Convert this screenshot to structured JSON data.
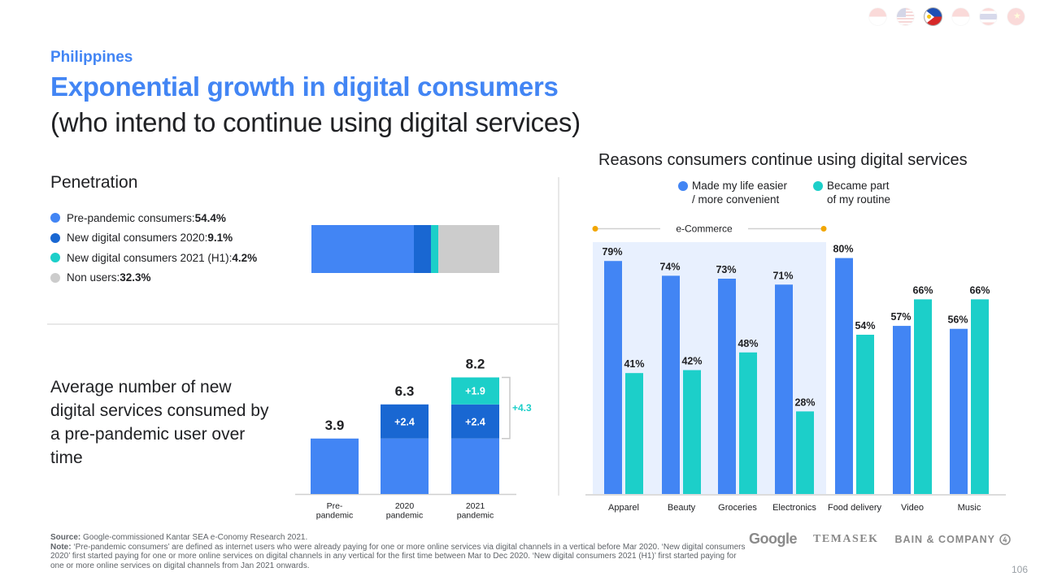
{
  "header": {
    "country": "Philippines",
    "title_line1": "Exponential growth in digital consumers",
    "title_line2": "(who intend to continue using digital services)"
  },
  "flags": [
    {
      "name": "indonesia-flag",
      "active": false
    },
    {
      "name": "malaysia-flag",
      "active": false
    },
    {
      "name": "philippines-flag",
      "active": true
    },
    {
      "name": "singapore-flag",
      "active": false
    },
    {
      "name": "thailand-flag",
      "active": false
    },
    {
      "name": "vietnam-flag",
      "active": false
    }
  ],
  "colors": {
    "blue": "#4285f4",
    "dark_blue": "#1967d2",
    "teal": "#1ccfc9",
    "grey": "#cccccc",
    "ecommerce_bg": "#e8f0fe",
    "bracket": "#f2a600"
  },
  "penetration": {
    "title": "Penetration",
    "legend": [
      {
        "label": "Pre-pandemic consumers: ",
        "value": "54.4%",
        "color": "#4285f4"
      },
      {
        "label": "New digital consumers 2020: ",
        "value": "9.1%",
        "color": "#1967d2"
      },
      {
        "label": "New digital consumers 2021 (H1): ",
        "value": "4.2%",
        "color": "#1ccfc9"
      },
      {
        "label": "Non users: ",
        "value": "32.3%",
        "color": "#cccccc"
      }
    ]
  },
  "average": {
    "title": "Average number of new digital services consumed by a pre-pandemic user over time"
  },
  "reasons": {
    "title": "Reasons consumers continue using digital services",
    "legend": [
      {
        "label_line1": "Made my life easier",
        "label_line2": "/ more convenient",
        "color": "#4285f4"
      },
      {
        "label_line1": "Became part",
        "label_line2": "of my routine",
        "color": "#1ccfc9"
      }
    ],
    "group_label": "e-Commerce"
  },
  "footer": {
    "source_label": "Source:",
    "source_text": " Google-commissioned Kantar SEA e-Conomy Research 2021.",
    "note_label": "Note:",
    "note_text": " ‘Pre-pandemic consumers’ are defined as internet users who were already paying for one or more online services via digital channels in a vertical before Mar 2020. ‘New digital consumers 2020’ first started paying for one or more online services on digital channels in any vertical for the first time between Mar to Dec 2020. ‘New digital consumers 2021 (H1)’ first started paying for one or more online services on digital channels from Jan 2021 onwards.",
    "logos": {
      "google": "Google",
      "temasek": "TEMASEK",
      "bain": "BAIN & COMPANY"
    },
    "page_number": "106"
  },
  "chart_data": [
    {
      "type": "bar",
      "orientation": "horizontal-stacked",
      "title": "Penetration",
      "categories": [
        "Penetration"
      ],
      "series": [
        {
          "name": "Pre-pandemic consumers",
          "values": [
            54.4
          ]
        },
        {
          "name": "New digital consumers 2020",
          "values": [
            9.1
          ]
        },
        {
          "name": "New digital consumers 2021 (H1)",
          "values": [
            4.2
          ]
        },
        {
          "name": "Non users",
          "values": [
            32.3
          ]
        }
      ],
      "unit": "%"
    },
    {
      "type": "bar",
      "orientation": "vertical-stacked",
      "title": "Average number of new digital services consumed by a pre-pandemic user over time",
      "categories": [
        "Pre-\npandemic",
        "2020\npandemic",
        "2021\npandemic"
      ],
      "series": [
        {
          "name": "Pre-pandemic base",
          "values": [
            3.9,
            3.9,
            3.9
          ]
        },
        {
          "name": "2020 increment",
          "values": [
            0,
            2.4,
            2.4
          ],
          "labels": [
            "",
            "+2.4",
            "+2.4"
          ]
        },
        {
          "name": "2021 increment",
          "values": [
            0,
            0,
            1.9
          ],
          "labels": [
            "",
            "",
            "+1.9"
          ]
        }
      ],
      "totals": [
        "3.9",
        "6.3",
        "8.2"
      ],
      "annotation": "+4.3",
      "ylim": [
        0,
        9
      ]
    },
    {
      "type": "bar",
      "orientation": "vertical-grouped",
      "title": "Reasons consumers continue using digital services",
      "categories": [
        "Apparel",
        "Beauty",
        "Groceries",
        "Electronics",
        "Food delivery",
        "Video",
        "Music"
      ],
      "series": [
        {
          "name": "Made my life easier / more convenient",
          "values": [
            79,
            74,
            73,
            71,
            80,
            57,
            56
          ]
        },
        {
          "name": "Became part of my routine",
          "values": [
            41,
            42,
            48,
            28,
            54,
            66,
            66
          ]
        }
      ],
      "group_annotation": {
        "label": "e-Commerce",
        "categories": [
          "Apparel",
          "Beauty",
          "Groceries",
          "Electronics"
        ]
      },
      "unit": "%",
      "ylim": [
        0,
        80
      ]
    }
  ]
}
